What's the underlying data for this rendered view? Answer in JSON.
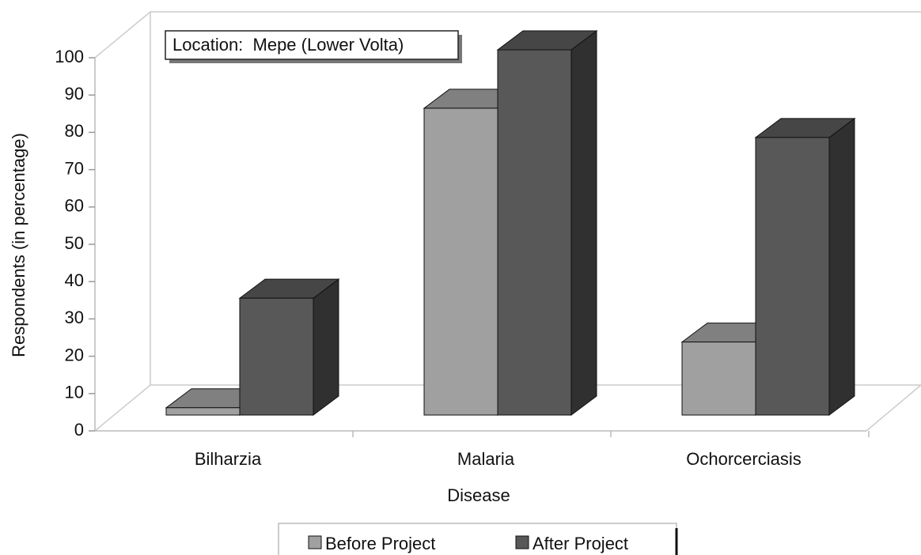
{
  "chart_data": {
    "type": "bar3d",
    "annotation": "Location:  Mepe (Lower Volta)",
    "xlabel": "Disease",
    "ylabel": "Respondents (in percentage)",
    "categories": [
      "Bilharzia",
      "Malaria",
      "Ochorcerciasis"
    ],
    "series": [
      {
        "name": "Before Project",
        "color": "#a0a0a0",
        "values": [
          2,
          84,
          20
        ]
      },
      {
        "name": "After Project",
        "color": "#585858",
        "values": [
          32,
          100,
          76
        ]
      }
    ],
    "ylim": [
      0,
      100
    ],
    "yticks": [
      0,
      10,
      20,
      30,
      40,
      50,
      60,
      70,
      80,
      90,
      100
    ]
  }
}
